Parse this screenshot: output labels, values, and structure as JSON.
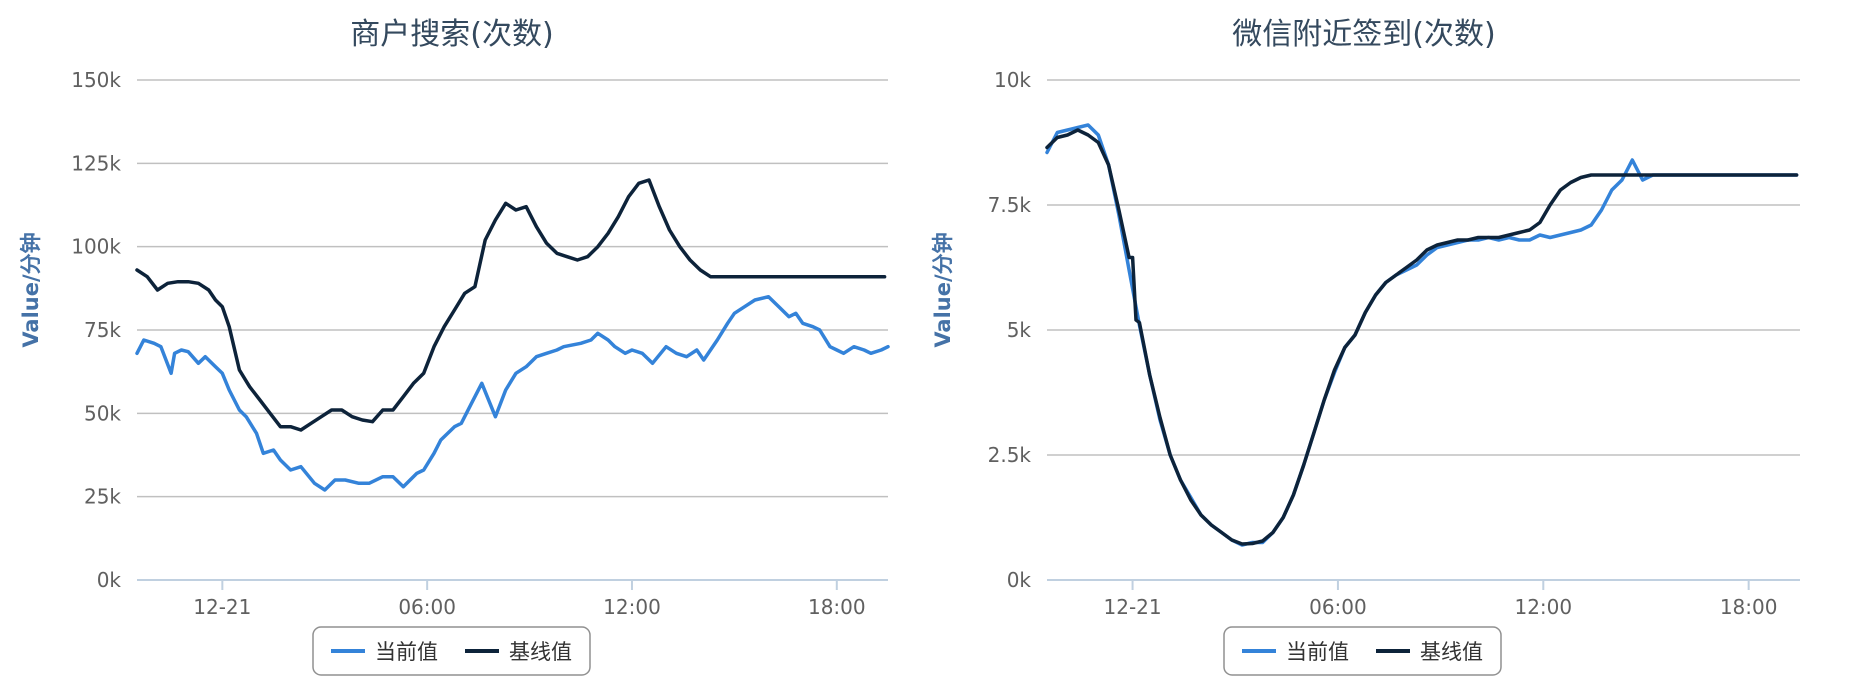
{
  "chart_data": [
    {
      "type": "line",
      "title": "商户搜索(次数)",
      "ylabel": "Value/分钟",
      "ylim": [
        0,
        150000
      ],
      "y_ticks": [
        0,
        25000,
        50000,
        75000,
        100000,
        125000,
        150000
      ],
      "y_tick_labels": [
        "0k",
        "25k",
        "50k",
        "75k",
        "100k",
        "125k",
        "150k"
      ],
      "x_range": [
        "12-20 21:30",
        "12-21 20:30"
      ],
      "x_ticks": [
        "12-21",
        "06:00",
        "12:00",
        "18:00"
      ],
      "x_tick_hours": [
        0,
        6,
        12,
        18
      ],
      "grid": true,
      "legend_position": "bottom-center",
      "series": [
        {
          "name": "当前值",
          "color": "#3483d9",
          "x_hours": [
            -2.5,
            -2.3,
            -2.0,
            -1.8,
            -1.5,
            -1.4,
            -1.2,
            -1.0,
            -0.7,
            -0.5,
            -0.2,
            0.0,
            0.2,
            0.5,
            0.7,
            1.0,
            1.2,
            1.5,
            1.7,
            2.0,
            2.3,
            2.7,
            3.0,
            3.3,
            3.6,
            4.0,
            4.3,
            4.7,
            5.0,
            5.3,
            5.7,
            5.9,
            6.2,
            6.4,
            6.8,
            7.0,
            7.3,
            7.6,
            8.0,
            8.3,
            8.6,
            8.9,
            9.2,
            9.5,
            9.8,
            10.0,
            10.5,
            10.8,
            11.0,
            11.3,
            11.5,
            11.8,
            12.0,
            12.3,
            12.6,
            13.0,
            13.3,
            13.6,
            13.9,
            14.1,
            14.5,
            14.8,
            15.0,
            15.3,
            15.6,
            16.0,
            16.3,
            16.6,
            16.8,
            17.0,
            17.3,
            17.5,
            17.8,
            18.0,
            18.2,
            18.5,
            18.8,
            19.0,
            19.3,
            19.5
          ],
          "values": [
            68000,
            72000,
            71000,
            70000,
            62000,
            68000,
            69000,
            68500,
            65000,
            67000,
            64000,
            62000,
            57000,
            51000,
            49000,
            44000,
            38000,
            39000,
            36000,
            33000,
            34000,
            29000,
            27000,
            30000,
            30000,
            29000,
            29000,
            31000,
            31000,
            28000,
            32000,
            33000,
            38000,
            42000,
            46000,
            47000,
            53000,
            59000,
            49000,
            57000,
            62000,
            64000,
            67000,
            68000,
            69000,
            70000,
            71000,
            72000,
            74000,
            72000,
            70000,
            68000,
            69000,
            68000,
            65000,
            70000,
            68000,
            67000,
            69000,
            66000,
            72000,
            77000,
            80000,
            82000,
            84000,
            85000,
            82000,
            79000,
            80000,
            77000,
            76000,
            75000,
            70000,
            69000,
            68000,
            70000,
            69000,
            68000,
            69000,
            70000
          ]
        },
        {
          "name": "基线值",
          "color": "#0d233a",
          "x_hours": [
            -2.5,
            -2.2,
            -1.9,
            -1.6,
            -1.3,
            -1.0,
            -0.7,
            -0.4,
            -0.2,
            0.0,
            0.2,
            0.5,
            0.8,
            1.1,
            1.4,
            1.7,
            2.0,
            2.3,
            2.6,
            2.9,
            3.2,
            3.5,
            3.8,
            4.1,
            4.4,
            4.7,
            5.0,
            5.3,
            5.6,
            5.9,
            6.2,
            6.5,
            6.8,
            7.1,
            7.4,
            7.7,
            8.0,
            8.3,
            8.6,
            8.9,
            9.2,
            9.5,
            9.8,
            10.1,
            10.4,
            10.7,
            11.0,
            11.3,
            11.6,
            11.9,
            12.2,
            12.5,
            12.8,
            13.1,
            13.4,
            13.7,
            14.0,
            14.3,
            14.6,
            14.9,
            15.2,
            15.5,
            15.8,
            16.1,
            16.4,
            16.7,
            17.0,
            17.3,
            17.6,
            17.9,
            18.2,
            18.5,
            18.8,
            19.1,
            19.4
          ],
          "values": [
            93000,
            91000,
            87000,
            89000,
            89500,
            89500,
            89000,
            87000,
            84000,
            82000,
            76000,
            63000,
            58000,
            54000,
            50000,
            46000,
            46000,
            45000,
            47000,
            49000,
            51000,
            51000,
            49000,
            48000,
            47500,
            51000,
            51000,
            55000,
            59000,
            62000,
            70000,
            76000,
            81000,
            86000,
            88000,
            102000,
            108000,
            113000,
            111000,
            112000,
            106000,
            101000,
            98000,
            97000,
            96000,
            97000,
            100000,
            104000,
            109000,
            115000,
            119000,
            120000,
            112000,
            105000,
            100000,
            96000,
            93000,
            91000,
            91000,
            91000,
            91000,
            91000,
            91000,
            91000,
            91000,
            91000,
            91000,
            91000,
            91000,
            91000,
            91000,
            91000,
            91000,
            91000,
            91000
          ]
        }
      ]
    },
    {
      "type": "line",
      "title": "微信附近签到(次数)",
      "ylabel": "Value/分钟",
      "ylim": [
        0,
        10000
      ],
      "y_ticks": [
        0,
        2500,
        5000,
        7500,
        10000
      ],
      "y_tick_labels": [
        "0k",
        "2.5k",
        "5k",
        "7.5k",
        "10k"
      ],
      "x_range": [
        "12-20 21:30",
        "12-21 20:30"
      ],
      "x_ticks": [
        "12-21",
        "06:00",
        "12:00",
        "18:00"
      ],
      "x_tick_hours": [
        0,
        6,
        12,
        18
      ],
      "grid": true,
      "legend_position": "bottom-center",
      "series": [
        {
          "name": "当前值",
          "color": "#3483d9",
          "x_hours": [
            -2.5,
            -2.2,
            -1.9,
            -1.6,
            -1.3,
            -1.0,
            -0.7,
            -0.4,
            -0.1,
            0.2,
            0.5,
            0.8,
            1.1,
            1.4,
            1.7,
            2.0,
            2.3,
            2.6,
            2.9,
            3.2,
            3.5,
            3.8,
            4.1,
            4.4,
            4.7,
            5.0,
            5.3,
            5.6,
            5.9,
            6.2,
            6.5,
            6.8,
            7.1,
            7.4,
            7.7,
            8.0,
            8.3,
            8.6,
            8.9,
            9.2,
            9.5,
            9.8,
            10.1,
            10.4,
            10.7,
            11.0,
            11.3,
            11.6,
            11.9,
            12.2,
            12.5,
            12.8,
            13.1,
            13.4,
            13.7,
            14.0,
            14.3,
            14.6,
            14.9,
            15.2,
            15.5,
            15.8,
            16.1,
            16.4,
            16.7,
            17.0,
            17.3,
            17.6,
            17.9,
            18.2,
            18.5,
            18.8,
            19.1,
            19.3,
            19.4
          ],
          "values": [
            8550,
            8950,
            9000,
            9050,
            9100,
            8900,
            8300,
            7300,
            6200,
            5100,
            4100,
            3200,
            2500,
            2000,
            1650,
            1300,
            1100,
            950,
            800,
            700,
            750,
            750,
            950,
            1250,
            1700,
            2300,
            2950,
            3600,
            4150,
            4650,
            4900,
            5350,
            5700,
            5950,
            6100,
            6200,
            6300,
            6500,
            6650,
            6700,
            6750,
            6800,
            6800,
            6850,
            6800,
            6850,
            6800,
            6800,
            6900,
            6850,
            6900,
            6950,
            7000,
            7100,
            7400,
            7800,
            8000,
            8400,
            8000,
            8100,
            8100,
            8100,
            8100,
            8100,
            8100,
            8100,
            8100,
            8100,
            8100,
            8100,
            8100,
            8100,
            8100,
            8100,
            8100
          ]
        },
        {
          "name": "基线值",
          "color": "#0d233a",
          "x_hours": [
            -2.5,
            -2.2,
            -1.9,
            -1.6,
            -1.3,
            -1.0,
            -0.7,
            -0.4,
            -0.1,
            0.0,
            0.1,
            0.2,
            0.5,
            0.8,
            1.1,
            1.4,
            1.7,
            2.0,
            2.3,
            2.6,
            2.9,
            3.2,
            3.5,
            3.8,
            4.1,
            4.4,
            4.7,
            5.0,
            5.3,
            5.6,
            5.9,
            6.2,
            6.5,
            6.8,
            7.1,
            7.4,
            7.7,
            8.0,
            8.3,
            8.6,
            8.9,
            9.2,
            9.5,
            9.8,
            10.1,
            10.4,
            10.7,
            11.0,
            11.3,
            11.6,
            11.9,
            12.2,
            12.5,
            12.8,
            13.1,
            13.4,
            13.7,
            14.0,
            14.3,
            14.6,
            14.9,
            15.2,
            15.5,
            15.8,
            16.1,
            16.4,
            16.7,
            17.0,
            17.3,
            17.6,
            17.9,
            18.2,
            18.5,
            18.8,
            19.1,
            19.4
          ],
          "values": [
            8650,
            8850,
            8900,
            9000,
            8900,
            8750,
            8300,
            7400,
            6450,
            6450,
            5200,
            5150,
            4100,
            3250,
            2500,
            2000,
            1600,
            1300,
            1100,
            950,
            800,
            720,
            730,
            780,
            950,
            1250,
            1700,
            2300,
            2950,
            3600,
            4200,
            4650,
            4900,
            5350,
            5700,
            5950,
            6100,
            6250,
            6400,
            6600,
            6700,
            6750,
            6800,
            6800,
            6850,
            6850,
            6850,
            6900,
            6950,
            7000,
            7150,
            7500,
            7800,
            7950,
            8050,
            8100,
            8100,
            8100,
            8100,
            8100,
            8100,
            8100,
            8100,
            8100,
            8100,
            8100,
            8100,
            8100,
            8100,
            8100,
            8100,
            8100,
            8100,
            8100,
            8100,
            8100
          ]
        }
      ]
    }
  ]
}
